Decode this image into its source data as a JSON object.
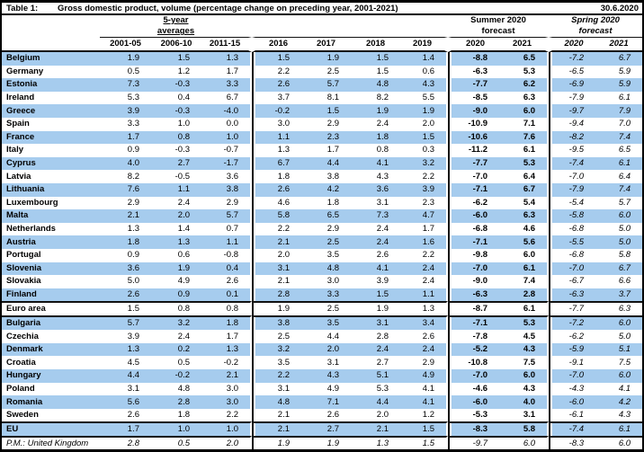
{
  "meta": {
    "table_label": "Table 1:",
    "title": "Gross domestic product, volume (percentage change on preceding year, 2001-2021)",
    "date": "30.6.2020"
  },
  "colors": {
    "row_band": "#A6CCEE",
    "rule": "#111111"
  },
  "header": {
    "avg_group": {
      "line1": "5-year",
      "line2": "averages"
    },
    "summer_group": {
      "line1": "Summer 2020",
      "line2": "forecast"
    },
    "spring_group": {
      "line1": "Spring 2020",
      "line2": "forecast"
    },
    "years": [
      "2001-05",
      "2006-10",
      "2011-15",
      "2016",
      "2017",
      "2018",
      "2019",
      "2020",
      "2021",
      "2020",
      "2021"
    ]
  },
  "table": {
    "rows": [
      {
        "name": "Belgium",
        "shaded": true,
        "v": [
          "1.9",
          "1.5",
          "1.3",
          "1.5",
          "1.9",
          "1.5",
          "1.4",
          "-8.8",
          "6.5",
          "-7.2",
          "6.7"
        ]
      },
      {
        "name": "Germany",
        "shaded": false,
        "v": [
          "0.5",
          "1.2",
          "1.7",
          "2.2",
          "2.5",
          "1.5",
          "0.6",
          "-6.3",
          "5.3",
          "-6.5",
          "5.9"
        ]
      },
      {
        "name": "Estonia",
        "shaded": true,
        "v": [
          "7.3",
          "-0.3",
          "3.3",
          "2.6",
          "5.7",
          "4.8",
          "4.3",
          "-7.7",
          "6.2",
          "-6.9",
          "5.9"
        ]
      },
      {
        "name": "Ireland",
        "shaded": false,
        "v": [
          "5.3",
          "0.4",
          "6.7",
          "3.7",
          "8.1",
          "8.2",
          "5.5",
          "-8.5",
          "6.3",
          "-7.9",
          "6.1"
        ]
      },
      {
        "name": "Greece",
        "shaded": true,
        "v": [
          "3.9",
          "-0.3",
          "-4.0",
          "-0.2",
          "1.5",
          "1.9",
          "1.9",
          "-9.0",
          "6.0",
          "-9.7",
          "7.9"
        ]
      },
      {
        "name": "Spain",
        "shaded": false,
        "v": [
          "3.3",
          "1.0",
          "0.0",
          "3.0",
          "2.9",
          "2.4",
          "2.0",
          "-10.9",
          "7.1",
          "-9.4",
          "7.0"
        ]
      },
      {
        "name": "France",
        "shaded": true,
        "v": [
          "1.7",
          "0.8",
          "1.0",
          "1.1",
          "2.3",
          "1.8",
          "1.5",
          "-10.6",
          "7.6",
          "-8.2",
          "7.4"
        ]
      },
      {
        "name": "Italy",
        "shaded": false,
        "v": [
          "0.9",
          "-0.3",
          "-0.7",
          "1.3",
          "1.7",
          "0.8",
          "0.3",
          "-11.2",
          "6.1",
          "-9.5",
          "6.5"
        ]
      },
      {
        "name": "Cyprus",
        "shaded": true,
        "v": [
          "4.0",
          "2.7",
          "-1.7",
          "6.7",
          "4.4",
          "4.1",
          "3.2",
          "-7.7",
          "5.3",
          "-7.4",
          "6.1"
        ]
      },
      {
        "name": "Latvia",
        "shaded": false,
        "v": [
          "8.2",
          "-0.5",
          "3.6",
          "1.8",
          "3.8",
          "4.3",
          "2.2",
          "-7.0",
          "6.4",
          "-7.0",
          "6.4"
        ]
      },
      {
        "name": "Lithuania",
        "shaded": true,
        "v": [
          "7.6",
          "1.1",
          "3.8",
          "2.6",
          "4.2",
          "3.6",
          "3.9",
          "-7.1",
          "6.7",
          "-7.9",
          "7.4"
        ]
      },
      {
        "name": "Luxembourg",
        "shaded": false,
        "v": [
          "2.9",
          "2.4",
          "2.9",
          "4.6",
          "1.8",
          "3.1",
          "2.3",
          "-6.2",
          "5.4",
          "-5.4",
          "5.7"
        ]
      },
      {
        "name": "Malta",
        "shaded": true,
        "v": [
          "2.1",
          "2.0",
          "5.7",
          "5.8",
          "6.5",
          "7.3",
          "4.7",
          "-6.0",
          "6.3",
          "-5.8",
          "6.0"
        ]
      },
      {
        "name": "Netherlands",
        "shaded": false,
        "v": [
          "1.3",
          "1.4",
          "0.7",
          "2.2",
          "2.9",
          "2.4",
          "1.7",
          "-6.8",
          "4.6",
          "-6.8",
          "5.0"
        ]
      },
      {
        "name": "Austria",
        "shaded": true,
        "v": [
          "1.8",
          "1.3",
          "1.1",
          "2.1",
          "2.5",
          "2.4",
          "1.6",
          "-7.1",
          "5.6",
          "-5.5",
          "5.0"
        ]
      },
      {
        "name": "Portugal",
        "shaded": false,
        "v": [
          "0.9",
          "0.6",
          "-0.8",
          "2.0",
          "3.5",
          "2.6",
          "2.2",
          "-9.8",
          "6.0",
          "-6.8",
          "5.8"
        ]
      },
      {
        "name": "Slovenia",
        "shaded": true,
        "v": [
          "3.6",
          "1.9",
          "0.4",
          "3.1",
          "4.8",
          "4.1",
          "2.4",
          "-7.0",
          "6.1",
          "-7.0",
          "6.7"
        ]
      },
      {
        "name": "Slovakia",
        "shaded": false,
        "v": [
          "5.0",
          "4.9",
          "2.6",
          "2.1",
          "3.0",
          "3.9",
          "2.4",
          "-9.0",
          "7.4",
          "-6.7",
          "6.6"
        ]
      },
      {
        "name": "Finland",
        "shaded": true,
        "v": [
          "2.6",
          "0.9",
          "0.1",
          "2.8",
          "3.3",
          "1.5",
          "1.1",
          "-6.3",
          "2.8",
          "-6.3",
          "3.7"
        ]
      },
      {
        "name": "Euro area",
        "shaded": false,
        "hline": true,
        "v": [
          "1.5",
          "0.8",
          "0.8",
          "1.9",
          "2.5",
          "1.9",
          "1.3",
          "-8.7",
          "6.1",
          "-7.7",
          "6.3"
        ]
      },
      {
        "name": "Bulgaria",
        "shaded": true,
        "hline": true,
        "v": [
          "5.7",
          "3.2",
          "1.8",
          "3.8",
          "3.5",
          "3.1",
          "3.4",
          "-7.1",
          "5.3",
          "-7.2",
          "6.0"
        ]
      },
      {
        "name": "Czechia",
        "shaded": false,
        "v": [
          "3.9",
          "2.4",
          "1.7",
          "2.5",
          "4.4",
          "2.8",
          "2.6",
          "-7.8",
          "4.5",
          "-6.2",
          "5.0"
        ]
      },
      {
        "name": "Denmark",
        "shaded": true,
        "v": [
          "1.3",
          "0.2",
          "1.3",
          "3.2",
          "2.0",
          "2.4",
          "2.4",
          "-5.2",
          "4.3",
          "-5.9",
          "5.1"
        ]
      },
      {
        "name": "Croatia",
        "shaded": false,
        "v": [
          "4.5",
          "0.5",
          "-0.2",
          "3.5",
          "3.1",
          "2.7",
          "2.9",
          "-10.8",
          "7.5",
          "-9.1",
          "7.5"
        ]
      },
      {
        "name": "Hungary",
        "shaded": true,
        "v": [
          "4.4",
          "-0.2",
          "2.1",
          "2.2",
          "4.3",
          "5.1",
          "4.9",
          "-7.0",
          "6.0",
          "-7.0",
          "6.0"
        ]
      },
      {
        "name": "Poland",
        "shaded": false,
        "v": [
          "3.1",
          "4.8",
          "3.0",
          "3.1",
          "4.9",
          "5.3",
          "4.1",
          "-4.6",
          "4.3",
          "-4.3",
          "4.1"
        ]
      },
      {
        "name": "Romania",
        "shaded": true,
        "v": [
          "5.6",
          "2.8",
          "3.0",
          "4.8",
          "7.1",
          "4.4",
          "4.1",
          "-6.0",
          "4.0",
          "-6.0",
          "4.2"
        ]
      },
      {
        "name": "Sweden",
        "shaded": false,
        "v": [
          "2.6",
          "1.8",
          "2.2",
          "2.1",
          "2.6",
          "2.0",
          "1.2",
          "-5.3",
          "3.1",
          "-6.1",
          "4.3"
        ]
      },
      {
        "name": "EU",
        "shaded": true,
        "hline": true,
        "v": [
          "1.7",
          "1.0",
          "1.0",
          "2.1",
          "2.7",
          "2.1",
          "1.5",
          "-8.3",
          "5.8",
          "-7.4",
          "6.1"
        ]
      },
      {
        "name": "P.M.: United Kingdom",
        "shaded": false,
        "hline": true,
        "pm": true,
        "v": [
          "2.8",
          "0.5",
          "2.0",
          "1.9",
          "1.9",
          "1.3",
          "1.5",
          "-9.7",
          "6.0",
          "-8.3",
          "6.0"
        ]
      }
    ]
  }
}
